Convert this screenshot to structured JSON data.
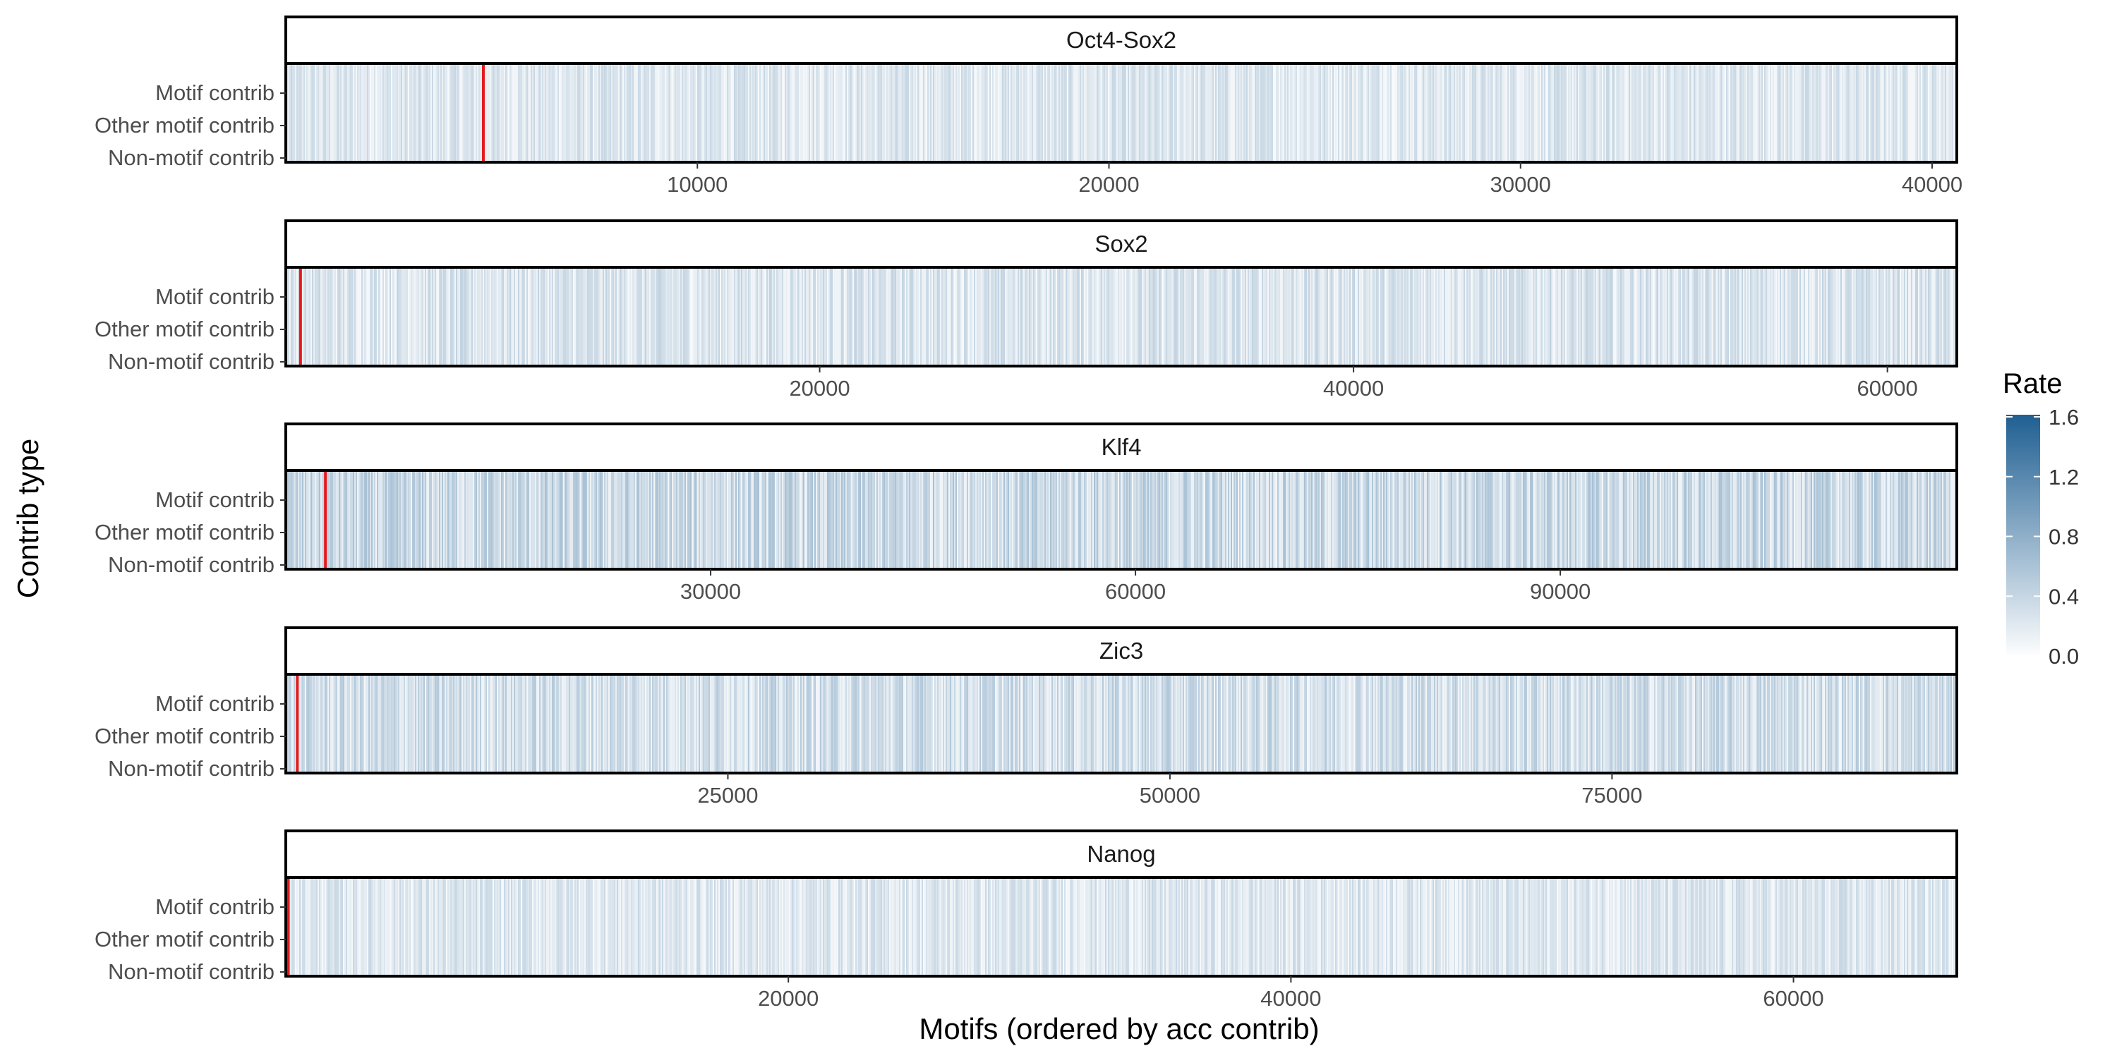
{
  "chart_data": {
    "type": "heatmap",
    "xlabel": "Motifs (ordered by acc contrib)",
    "ylabel": "Contrib type",
    "rows": [
      "Motif contrib",
      "Other motif contrib",
      "Non-motif contrib"
    ],
    "legend": {
      "title": "Rate",
      "placement": "right",
      "ticks": [
        "0.0",
        "0.4",
        "0.8",
        "1.2",
        "1.6"
      ],
      "min": 0,
      "max": 1.6,
      "color_low": "#ffffff",
      "color_high": "#1f5f92"
    },
    "threshold_color": "#e41a1c",
    "panels": [
      {
        "name": "Oct4-Sox2",
        "xmax": 40600,
        "threshold": 4800,
        "mean_rate": 0.22,
        "ticks": [
          10000,
          20000,
          30000,
          40000
        ],
        "tick_labels": [
          "10000",
          "20000",
          "30000",
          "40000"
        ]
      },
      {
        "name": "Sox2",
        "xmax": 62600,
        "threshold": 550,
        "mean_rate": 0.24,
        "ticks": [
          20000,
          40000,
          60000
        ],
        "tick_labels": [
          "20000",
          "40000",
          "60000"
        ]
      },
      {
        "name": "Klf4",
        "xmax": 118000,
        "threshold": 2800,
        "mean_rate": 0.34,
        "ticks": [
          30000,
          60000,
          90000
        ],
        "tick_labels": [
          "30000",
          "60000",
          "90000"
        ]
      },
      {
        "name": "Zic3",
        "xmax": 94500,
        "threshold": 650,
        "mean_rate": 0.3,
        "ticks": [
          25000,
          50000,
          75000
        ],
        "tick_labels": [
          "25000",
          "50000",
          "75000"
        ]
      },
      {
        "name": "Nanog",
        "xmax": 66500,
        "threshold": 100,
        "mean_rate": 0.22,
        "ticks": [
          20000,
          40000,
          60000
        ],
        "tick_labels": [
          "20000",
          "40000",
          "60000"
        ]
      }
    ]
  }
}
